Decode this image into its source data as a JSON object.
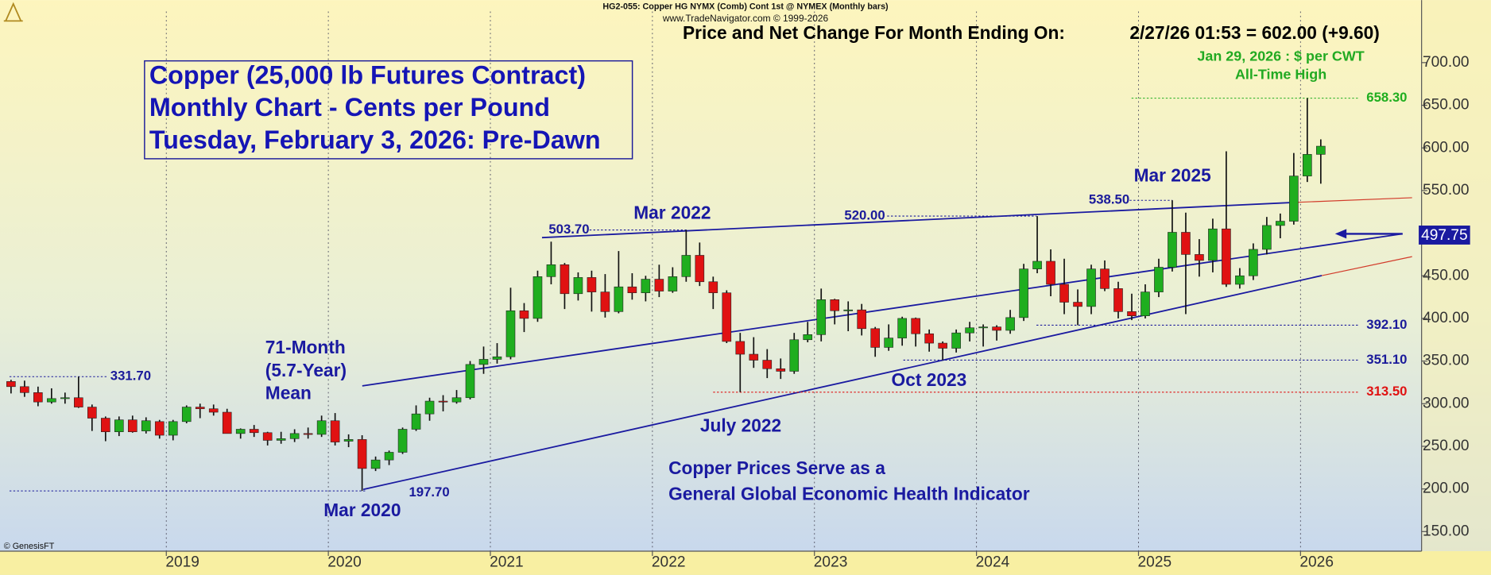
{
  "chart_data": {
    "type": "candlestick",
    "header": "HG2-055:  Copper HG NYMX (Comb) Cont 1st @ NYMEX  (Monthly bars)",
    "source": "www.TradeNavigator.com © 1999-2026",
    "price_caption": "Price and Net Change For Month Ending On:",
    "price_readout": "2/27/26 01:53 = 602.00 (+9.60)",
    "title_lines": [
      "Copper (25,000 lb Futures Contract)",
      "Monthly Chart - Cents per Pound",
      "Tuesday, February 3, 2026: Pre-Dawn"
    ],
    "ath_lines": [
      "Jan 29, 2026 : $ per CWT",
      "All-Time High"
    ],
    "annotations": [
      "Mar 2022",
      "Mar 2025",
      "July 2022",
      "Oct 2023",
      "Mar 2020",
      "71-Month",
      "(5.7-Year)",
      "Mean",
      "Copper Prices Serve as a",
      "General Global Economic Health Indicator"
    ],
    "credit": "© GenesisFT",
    "x": [
      "2018-01",
      "2018-02",
      "2018-03",
      "2018-04",
      "2018-05",
      "2018-06",
      "2018-07",
      "2018-08",
      "2018-09",
      "2018-10",
      "2018-11",
      "2018-12",
      "2019-01",
      "2019-02",
      "2019-03",
      "2019-04",
      "2019-05",
      "2019-06",
      "2019-07",
      "2019-08",
      "2019-09",
      "2019-10",
      "2019-11",
      "2019-12",
      "2020-01",
      "2020-02",
      "2020-03",
      "2020-04",
      "2020-05",
      "2020-06",
      "2020-07",
      "2020-08",
      "2020-09",
      "2020-10",
      "2020-11",
      "2020-12",
      "2021-01",
      "2021-02",
      "2021-03",
      "2021-04",
      "2021-05",
      "2021-06",
      "2021-07",
      "2021-08",
      "2021-09",
      "2021-10",
      "2021-11",
      "2021-12",
      "2022-01",
      "2022-02",
      "2022-03",
      "2022-04",
      "2022-05",
      "2022-06",
      "2022-07",
      "2022-08",
      "2022-09",
      "2022-10",
      "2022-11",
      "2022-12",
      "2023-01",
      "2023-02",
      "2023-03",
      "2023-04",
      "2023-05",
      "2023-06",
      "2023-07",
      "2023-08",
      "2023-09",
      "2023-10",
      "2023-11",
      "2023-12",
      "2024-01",
      "2024-02",
      "2024-03",
      "2024-04",
      "2024-05",
      "2024-06",
      "2024-07",
      "2024-08",
      "2024-09",
      "2024-10",
      "2024-11",
      "2024-12",
      "2025-01",
      "2025-02",
      "2025-03",
      "2025-04",
      "2025-05",
      "2025-06",
      "2025-07",
      "2025-08",
      "2025-09",
      "2025-10",
      "2025-11",
      "2025-12",
      "2026-01",
      "2026-02"
    ],
    "open": [
      326,
      320,
      313,
      302,
      306,
      307,
      296,
      283,
      267,
      281,
      268,
      279,
      263,
      279,
      296,
      294,
      290,
      265,
      270,
      266,
      257,
      259,
      265,
      264,
      280,
      256,
      258,
      224,
      234,
      243,
      270,
      288,
      303,
      302,
      307,
      346,
      352,
      355,
      409,
      400,
      449,
      463,
      429,
      448,
      431,
      408,
      437,
      430,
      446,
      432,
      449,
      474,
      443,
      430,
      373,
      358,
      351,
      341,
      338,
      375,
      381,
      422,
      409,
      410,
      388,
      366,
      377,
      400,
      382,
      371,
      365,
      383,
      389,
      390,
      386,
      401,
      458,
      467,
      440,
      419,
      414,
      458,
      435,
      408,
      403,
      431,
      460,
      501,
      475,
      468,
      505,
      440,
      450,
      481,
      509,
      514,
      567,
      592.4
    ],
    "high": [
      328,
      327,
      320,
      318,
      313,
      331.7,
      299,
      285,
      285,
      286,
      284,
      281,
      281,
      298,
      300,
      299,
      294,
      271,
      275,
      267,
      267,
      270,
      272,
      286,
      289,
      264,
      263,
      238,
      245,
      272,
      298,
      307,
      310,
      316,
      350,
      367,
      371,
      436,
      418,
      456,
      490,
      465,
      454,
      456,
      452,
      479,
      453,
      450,
      463,
      460,
      503.7,
      489,
      449,
      433,
      383,
      378,
      364,
      353,
      383,
      396,
      435,
      423,
      420,
      417,
      390,
      393,
      402,
      401,
      387,
      373,
      387,
      396,
      393,
      392,
      410,
      464,
      520,
      481,
      470,
      434,
      463,
      468,
      443,
      429,
      440,
      470,
      538.5,
      524,
      493,
      517,
      596,
      459,
      488,
      519,
      523,
      594,
      658.3,
      610
    ],
    "low": [
      312,
      308,
      297,
      300,
      300,
      295,
      268,
      256,
      262,
      266,
      265,
      259,
      257,
      277,
      283,
      286,
      265,
      259,
      261,
      251,
      253,
      255,
      259,
      261,
      251,
      249,
      197.7,
      221,
      228,
      241,
      268,
      280,
      291,
      300,
      305,
      335,
      347,
      352,
      384,
      396,
      440,
      411,
      421,
      408,
      401,
      406,
      422,
      420,
      425,
      430,
      443,
      438,
      411,
      371,
      313.5,
      342,
      330,
      329,
      335,
      372,
      373,
      393,
      385,
      380,
      355,
      362,
      368,
      367,
      361,
      351.1,
      360,
      373,
      367,
      374,
      382,
      397,
      453,
      426,
      405,
      392.1,
      405,
      432,
      400,
      398,
      400,
      425,
      455,
      405,
      449,
      454,
      437,
      435,
      445,
      475,
      494,
      510,
      560,
      558
    ],
    "close": [
      320,
      313,
      302,
      306,
      307,
      296,
      283,
      267,
      281,
      267,
      280,
      263,
      279,
      296,
      294,
      290,
      265,
      270,
      266,
      257,
      259,
      265,
      264,
      280,
      255,
      258,
      224,
      234,
      243,
      270,
      288,
      303,
      302,
      307,
      346,
      352,
      355,
      409,
      400,
      449,
      463,
      429,
      448,
      431,
      408,
      437,
      430,
      446,
      432,
      449,
      474,
      443,
      430,
      373,
      358,
      351,
      341,
      338,
      375,
      381,
      422,
      409,
      410,
      388,
      366,
      377,
      400,
      382,
      371,
      365,
      383,
      389,
      390,
      386,
      401,
      458,
      467,
      440,
      419,
      414,
      458,
      435,
      408,
      403,
      431,
      460,
      501,
      475,
      468,
      505,
      440,
      450,
      481,
      509,
      514,
      567,
      592.4,
      602
    ],
    "up_color": "#1fae1f",
    "down_color": "#e01212",
    "ylim": [
      127,
      760
    ],
    "yticks": [
      {
        "value": 150,
        "label": "150.00"
      },
      {
        "value": 200,
        "label": "200.00"
      },
      {
        "value": 250,
        "label": "250.00"
      },
      {
        "value": 300,
        "label": "300.00"
      },
      {
        "value": 350,
        "label": "350.00"
      },
      {
        "value": 400,
        "label": "400.00"
      },
      {
        "value": 450,
        "label": "450.00"
      },
      {
        "value": 500,
        "label": "500.00"
      },
      {
        "value": 550,
        "label": "550.00"
      },
      {
        "value": 600,
        "label": "600.00"
      },
      {
        "value": 650,
        "label": "650.00"
      },
      {
        "value": 700,
        "label": "700.00"
      }
    ],
    "xticks": [
      2019,
      2020,
      2021,
      2022,
      2023,
      2024,
      2025,
      2026
    ],
    "levels": [
      {
        "value": 331.7,
        "label": "331.70",
        "color": "#1a1a9a"
      },
      {
        "value": 197.7,
        "label": "197.70",
        "color": "#1a1a9a"
      },
      {
        "value": 503.7,
        "label": "503.70",
        "color": "#1a1a9a"
      },
      {
        "value": 520,
        "label": "520.00",
        "color": "#1a1a9a"
      },
      {
        "value": 538.5,
        "label": "538.50",
        "color": "#1a1a9a"
      },
      {
        "value": 658.3,
        "label": "658.30",
        "color": "#1fae1f"
      },
      {
        "value": 392.1,
        "label": "392.10",
        "color": "#1a1a9a"
      },
      {
        "value": 351.1,
        "label": "351.10",
        "color": "#1a1a9a"
      },
      {
        "value": 313.5,
        "label": "313.50",
        "color": "#e01212"
      }
    ],
    "highlight": {
      "value": 497.75,
      "label": "497.75",
      "color": "#1a1aa0"
    }
  }
}
